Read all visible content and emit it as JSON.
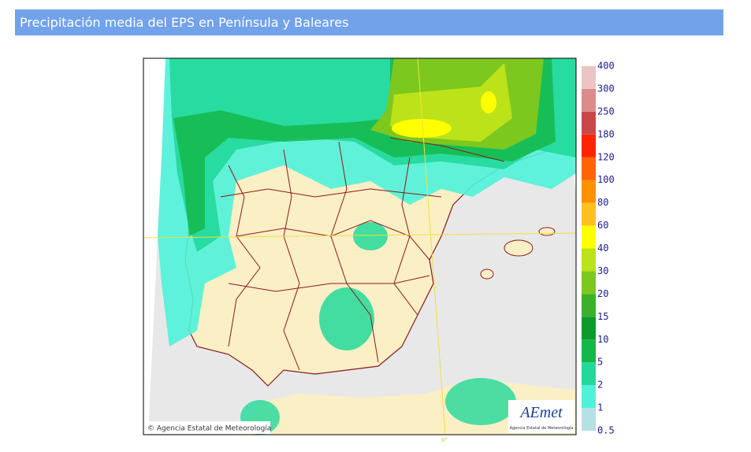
{
  "header": {
    "title": "Precipitación media del EPS en Península y Baleares"
  },
  "map": {
    "attribution": "© Agencia Estatal de Meteorología",
    "meridian_label": "0°",
    "logo": {
      "name": "AEmet",
      "subtitle": "Agencia Estatal de Meteorología"
    },
    "legend": {
      "labels": [
        0.5,
        1,
        2,
        5,
        10,
        15,
        20,
        30,
        40,
        60,
        80,
        100,
        120,
        180,
        250,
        300,
        400
      ],
      "colors": [
        "#b4e0e6",
        "#4ff2d9",
        "#22d89a",
        "#14b84a",
        "#0c9a2a",
        "#3cb02c",
        "#7cc81e",
        "#bce21a",
        "#ffff00",
        "#ffc020",
        "#ff9000",
        "#ff6400",
        "#ff2400",
        "#c84848",
        "#dc8a8a",
        "#ecc4c4"
      ]
    }
  }
}
